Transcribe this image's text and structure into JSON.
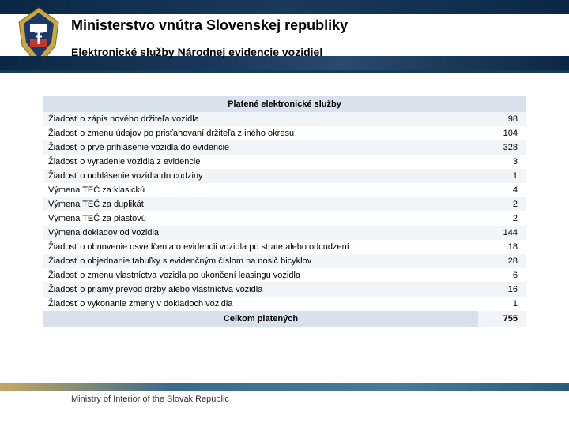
{
  "header": {
    "title": "Ministerstvo vnútra Slovenskej republiky",
    "subtitle": "Elektronické služby Národnej evidencie vozidiel"
  },
  "table": {
    "header": "Platené elektronické služby",
    "rows": [
      {
        "label": "Žiadosť o zápis nového držiteľa vozidla",
        "value": 98
      },
      {
        "label": "Žiadosť o zmenu údajov po prisťahovaní držiteľa z iného okresu",
        "value": 104
      },
      {
        "label": "Žiadosť o prvé prihlásenie vozidla do evidencie",
        "value": 328
      },
      {
        "label": "Žiadosť o vyradenie vozidla z evidencie",
        "value": 3
      },
      {
        "label": "Žiadosť o odhlásenie vozidla do cudziny",
        "value": 1
      },
      {
        "label": "Výmena TEČ za klasickú",
        "value": 4
      },
      {
        "label": "Výmena TEČ za duplikát",
        "value": 2
      },
      {
        "label": "Výmena TEČ za plastovú",
        "value": 2
      },
      {
        "label": "Výmena dokladov od vozidla",
        "value": 144
      },
      {
        "label": "Žiadosť o obnovenie osvedčenia o evidencii vozidla po strate alebo odcudzení",
        "value": 18
      },
      {
        "label": "Žiadosť o objednanie tabuľky s evidenčným číslom na nosič bicyklov",
        "value": 28
      },
      {
        "label": "Žiadosť o zmenu vlastníctva vozidla po ukončení leasingu vozidla",
        "value": 6
      },
      {
        "label": "Žiadosť o priamy prevod držby alebo vlastníctva vozidla",
        "value": 16
      },
      {
        "label": "Žiadosť o vykonanie zmeny v dokladoch vozidla",
        "value": 1
      }
    ],
    "footer_label": "Celkom platených",
    "footer_value": 755,
    "header_bg": "#d9e2ec",
    "row_even_bg": "#f2f5f8",
    "row_odd_bg": "#ffffff",
    "font_size": 11
  },
  "footer": {
    "text": "Ministry of Interior of the Slovak Republic"
  },
  "logo": {
    "outer_color": "#c8a840",
    "inner_color": "#1a3a6c",
    "cross_color": "#ffffff",
    "red_stripe": "#c0392b"
  }
}
